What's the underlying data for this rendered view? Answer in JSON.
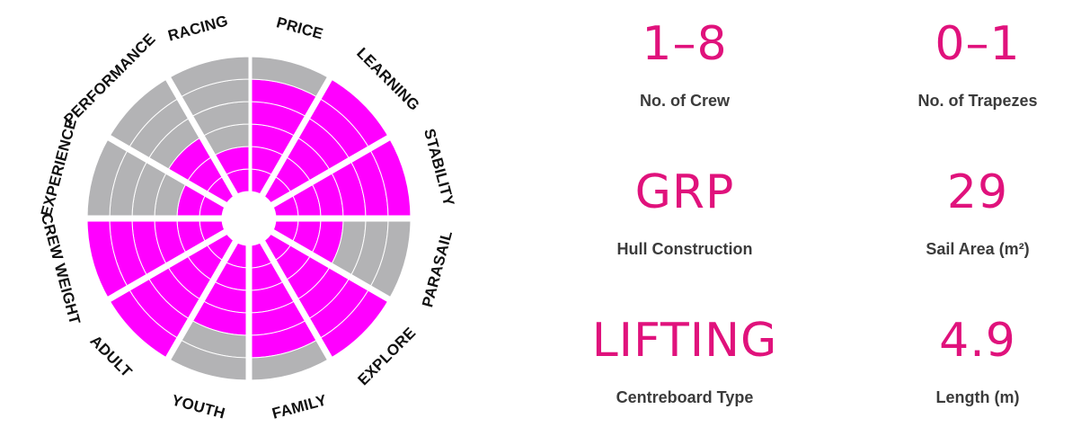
{
  "chart_data": {
    "type": "polar-area",
    "max_rings": 6,
    "colors": {
      "filled": "#ff00ff",
      "empty": "#b3b3b5",
      "gap": "#ffffff"
    },
    "categories": [
      "PRICE",
      "LEARNING",
      "STABILITY",
      "PARASAIL",
      "EXPLORE",
      "FAMILY",
      "YOUTH",
      "ADULT",
      "CREW WEIGHT",
      "EXPERIENCE",
      "PERFORMANCE",
      "RACING"
    ],
    "values": [
      5,
      6,
      6,
      3,
      6,
      5,
      4,
      6,
      6,
      2,
      3,
      2
    ]
  },
  "stats": [
    {
      "value": "1–8",
      "label": "No. of Crew"
    },
    {
      "value": "0–1",
      "label": "No. of Trapezes"
    },
    {
      "value": "GRP",
      "label": "Hull Construction"
    },
    {
      "value": "29",
      "label": "Sail Area (m²)"
    },
    {
      "value": "LIFTING",
      "label": "Centreboard Type"
    },
    {
      "value": "4.9",
      "label": "Length (m)"
    }
  ]
}
